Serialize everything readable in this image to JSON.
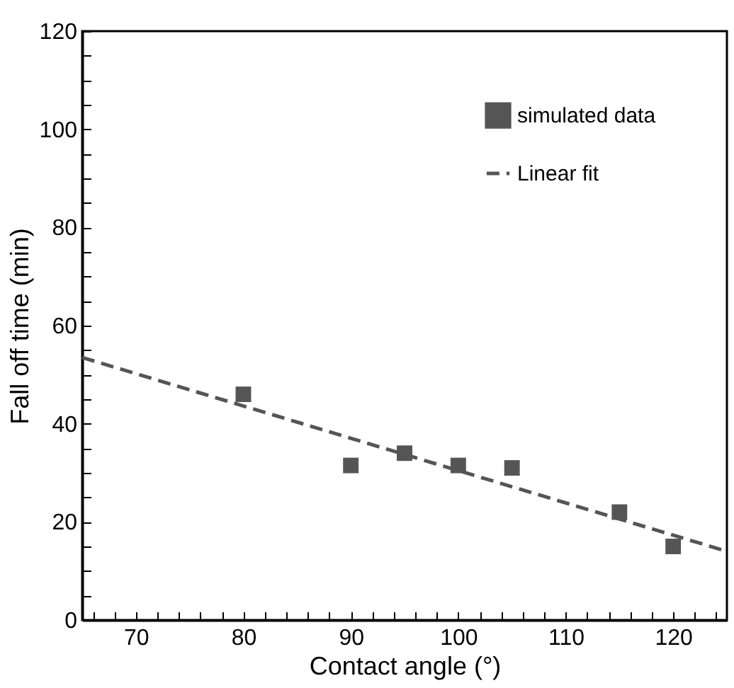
{
  "chart_data": {
    "type": "scatter",
    "xlabel": "Contact angle (°)",
    "ylabel": "Fall off time (min)",
    "x": [
      80,
      90,
      95,
      100,
      105,
      115,
      120
    ],
    "series": [
      {
        "name": "simulated data",
        "color": "#555555",
        "marker": "square",
        "values": [
          46,
          31.5,
          34,
          31.5,
          31,
          22,
          15
        ]
      },
      {
        "name": "Linear fit",
        "type": "line",
        "color": "#555555",
        "line_style": "dashed",
        "x": [
          65,
          125
        ],
        "values": [
          53.5,
          14
        ]
      }
    ],
    "xlim": [
      65,
      125
    ],
    "xticks": [
      {
        "value": 66,
        "label": null
      },
      {
        "value": 68,
        "label": null
      },
      70,
      {
        "value": 72,
        "label": null
      },
      {
        "value": 74,
        "label": null
      },
      {
        "value": 76,
        "label": null
      },
      {
        "value": 78,
        "label": null
      },
      80,
      {
        "value": 82,
        "label": null
      },
      {
        "value": 84,
        "label": null
      },
      {
        "value": 86,
        "label": null
      },
      {
        "value": 88,
        "label": null
      },
      90,
      {
        "value": 92,
        "label": null
      },
      {
        "value": 94,
        "label": null
      },
      {
        "value": 96,
        "label": null
      },
      {
        "value": 98,
        "label": null
      },
      100,
      {
        "value": 102,
        "label": null
      },
      {
        "value": 104,
        "label": null
      },
      {
        "value": 106,
        "label": null
      },
      {
        "value": 108,
        "label": null
      },
      110,
      {
        "value": 112,
        "label": null
      },
      {
        "value": 114,
        "label": null
      },
      {
        "value": 116,
        "label": null
      },
      {
        "value": 118,
        "label": null
      },
      120,
      {
        "value": 122,
        "label": null
      },
      {
        "value": 124,
        "label": null
      }
    ],
    "ylim": [
      0,
      120
    ],
    "yticks": [
      0,
      {
        "value": 5,
        "label": null
      },
      {
        "value": 10,
        "label": null
      },
      {
        "value": 15,
        "label": null
      },
      20,
      {
        "value": 25,
        "label": null
      },
      {
        "value": 30,
        "label": null
      },
      {
        "value": 35,
        "label": null
      },
      40,
      {
        "value": 45,
        "label": null
      },
      {
        "value": 50,
        "label": null
      },
      {
        "value": 55,
        "label": null
      },
      60,
      {
        "value": 65,
        "label": null
      },
      {
        "value": 70,
        "label": null
      },
      {
        "value": 75,
        "label": null
      },
      80,
      {
        "value": 85,
        "label": null
      },
      {
        "value": 90,
        "label": null
      },
      {
        "value": 95,
        "label": null
      },
      100,
      {
        "value": 105,
        "label": null
      },
      {
        "value": 110,
        "label": null
      },
      {
        "value": 115,
        "label": null
      },
      120
    ],
    "legend": "top right"
  }
}
